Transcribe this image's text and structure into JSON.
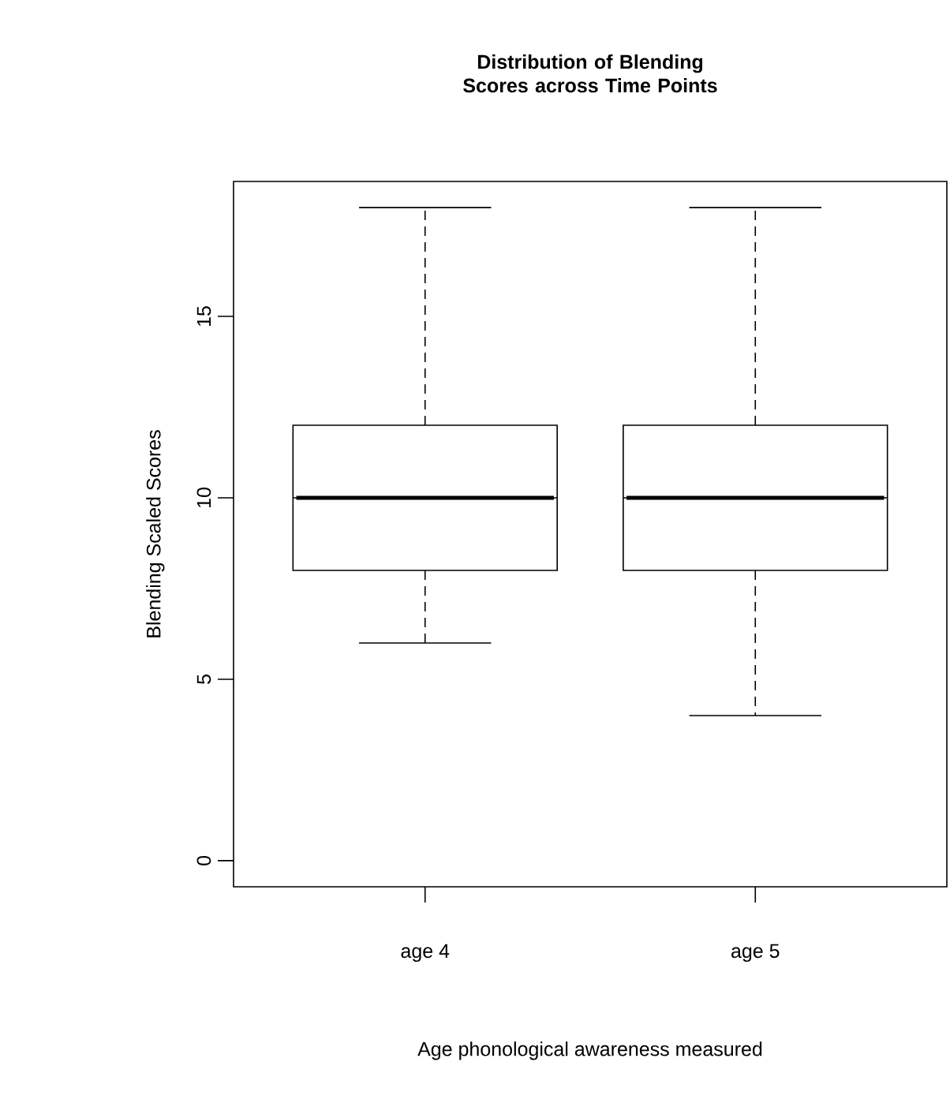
{
  "chart_data": {
    "type": "box",
    "title": "Distribution of Blending Scores across Time Points",
    "xlabel": "Age phonological awareness measured",
    "ylabel": "Blending Scaled Scores",
    "categories": [
      "age 4",
      "age 5"
    ],
    "color": "#000000",
    "boxes": [
      {
        "low": 6,
        "q1": 8,
        "median": 10,
        "q3": 12,
        "high": 18
      },
      {
        "low": 4,
        "q1": 8,
        "median": 10,
        "q3": 12,
        "high": 18
      }
    ],
    "ylim": [
      -0.72,
      18.72
    ],
    "yticks": [
      0,
      5,
      10,
      15
    ]
  }
}
